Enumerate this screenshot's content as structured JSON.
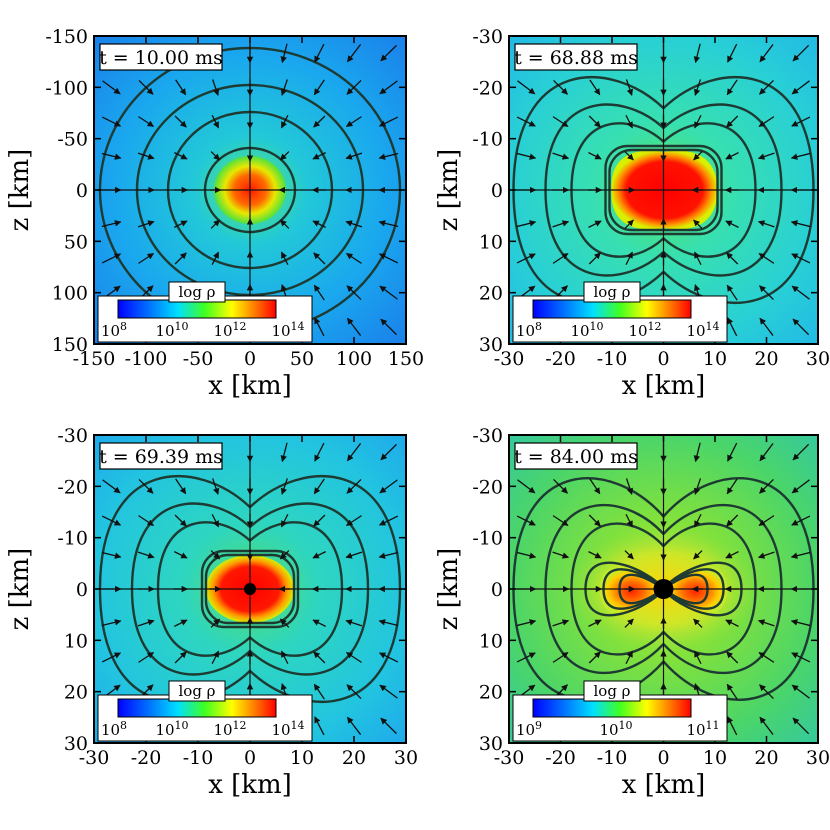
{
  "chart_data": [
    {
      "type": "heatmap",
      "panel": "top-left",
      "time_label": "t = 10.00 ms",
      "time_value": "10.00",
      "xlabel": "x [km]",
      "ylabel": "z [km]",
      "xlim": [
        -150,
        150
      ],
      "ylim": [
        -150,
        150
      ],
      "x_ticks": [
        "-150",
        "-100",
        "-50",
        "0",
        "50",
        "100",
        "150"
      ],
      "y_ticks": [
        "-150",
        "-100",
        "-50",
        "0",
        "50",
        "100",
        "150"
      ],
      "colorbar": {
        "label": "log ρ",
        "ticks": [
          "10^8",
          "10^10",
          "10^12",
          "10^14"
        ]
      },
      "background_color": "#1f9bf0",
      "center_feature": "none"
    },
    {
      "type": "heatmap",
      "panel": "top-right",
      "time_label": "t = 68.88 ms",
      "time_value": "68.88",
      "xlabel": "x [km]",
      "ylabel": "z [km]",
      "xlim": [
        -30,
        30
      ],
      "ylim": [
        -30,
        30
      ],
      "x_ticks": [
        "-30",
        "-20",
        "-10",
        "0",
        "10",
        "20",
        "30"
      ],
      "y_ticks": [
        "-30",
        "-20",
        "-10",
        "0",
        "10",
        "20",
        "30"
      ],
      "colorbar": {
        "label": "log ρ",
        "ticks": [
          "10^8",
          "10^10",
          "10^12",
          "10^14"
        ]
      },
      "background_color": "#2fd7c9",
      "center_feature": "none"
    },
    {
      "type": "heatmap",
      "panel": "bottom-left",
      "time_label": "t = 69.39 ms",
      "time_value": "69.39",
      "xlabel": "x [km]",
      "ylabel": "z [km]",
      "xlim": [
        -30,
        30
      ],
      "ylim": [
        -30,
        30
      ],
      "x_ticks": [
        "-30",
        "-20",
        "-10",
        "0",
        "10",
        "20",
        "30"
      ],
      "y_ticks": [
        "-30",
        "-20",
        "-10",
        "0",
        "10",
        "20",
        "30"
      ],
      "colorbar": {
        "label": "log ρ",
        "ticks": [
          "10^8",
          "10^10",
          "10^12",
          "10^14"
        ]
      },
      "background_color": "#22c8dc",
      "center_feature": "black hole (small)"
    },
    {
      "type": "heatmap",
      "panel": "bottom-right",
      "time_label": "t = 84.00 ms",
      "time_value": "84.00",
      "xlabel": "x [km]",
      "ylabel": "z [km]",
      "xlim": [
        -30,
        30
      ],
      "ylim": [
        -30,
        30
      ],
      "x_ticks": [
        "-30",
        "-20",
        "-10",
        "0",
        "10",
        "20",
        "30"
      ],
      "y_ticks": [
        "-30",
        "-20",
        "-10",
        "0",
        "10",
        "20",
        "30"
      ],
      "colorbar": {
        "label": "log ρ",
        "ticks": [
          "10^9",
          "10^10",
          "10^11"
        ]
      },
      "background_color": "#4cd850",
      "center_feature": "black hole (large)"
    }
  ],
  "colors": {
    "jet_blue": "#0000ff",
    "jet_cyan": "#00e0ff",
    "jet_green": "#40ff20",
    "jet_yellow": "#ffff00",
    "jet_red": "#ff0000",
    "contour": "#1e3b33",
    "arrow": "#111111"
  }
}
